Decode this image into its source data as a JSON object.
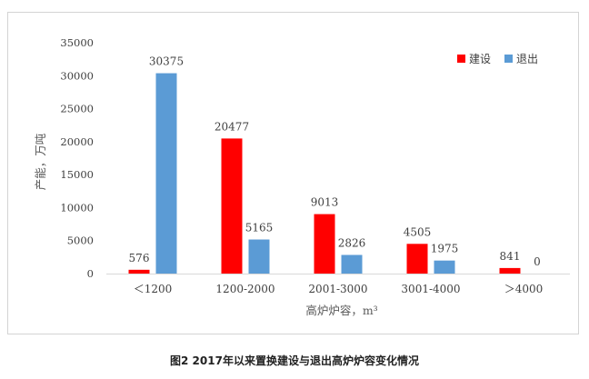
{
  "caption": "图2  2017年以来置换建设与退出高炉炉容变化情况",
  "chart_data": {
    "type": "bar",
    "categories": [
      "＜1200",
      "1200-2000",
      "2001-3000",
      "3001-4000",
      "＞4000"
    ],
    "series": [
      {
        "name": "建设",
        "values": [
          576,
          20477,
          9013,
          4505,
          841
        ],
        "color": "#ff0000"
      },
      {
        "name": "退出",
        "values": [
          30375,
          5165,
          2826,
          1975,
          0
        ],
        "color": "#5b9bd5"
      }
    ],
    "ylim": [
      0,
      35000
    ],
    "yticks": [
      0,
      5000,
      10000,
      15000,
      20000,
      25000,
      30000,
      35000
    ],
    "xlabel": "高炉炉容，m³",
    "ylabel": "产能，万吨",
    "legend": "top-right",
    "grid": false
  }
}
